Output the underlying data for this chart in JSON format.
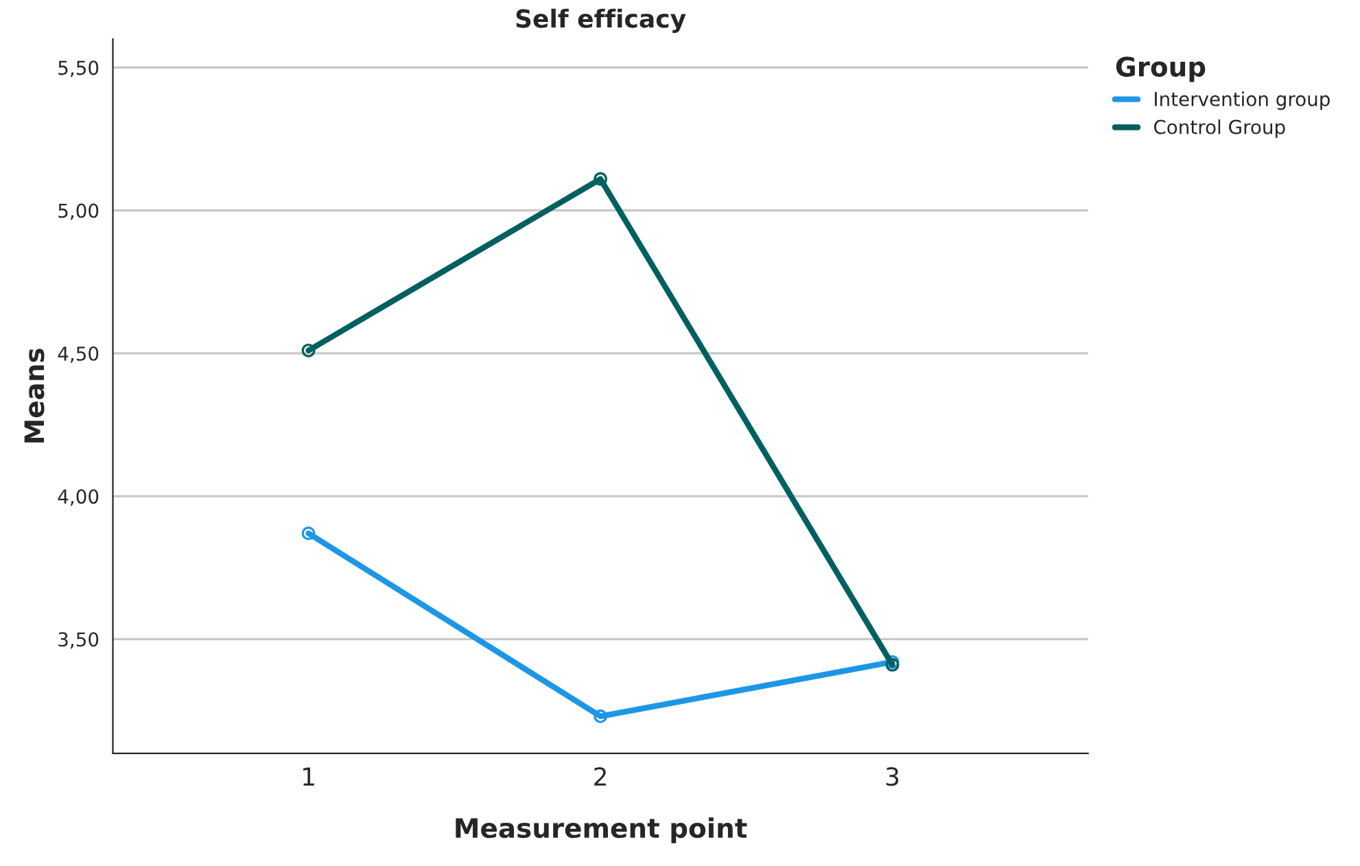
{
  "chart_data": {
    "type": "line",
    "title": "Self efficacy",
    "xlabel": "Measurement point",
    "ylabel": "Means",
    "legend_title": "Group",
    "legend": "top right",
    "grid": "y",
    "marker": "circle",
    "line_style": "solid",
    "x": [
      1,
      2,
      3
    ],
    "xlim": [
      0.33,
      3.67
    ],
    "xticks": [
      1,
      2,
      3
    ],
    "ylim": [
      3.1,
      5.6
    ],
    "yticks": [
      {
        "value": 3.5,
        "label": "3,50"
      },
      {
        "value": 4.0,
        "label": "4,00"
      },
      {
        "value": 4.5,
        "label": "4,50"
      },
      {
        "value": 5.0,
        "label": "5,00"
      },
      {
        "value": 5.5,
        "label": "5,50"
      }
    ],
    "series": [
      {
        "name": "Intervention group",
        "color": "#1e96e6",
        "values": [
          3.87,
          3.23,
          3.42
        ]
      },
      {
        "name": "Control Group",
        "color": "#006060",
        "values": [
          4.51,
          5.11,
          3.41
        ]
      }
    ]
  }
}
